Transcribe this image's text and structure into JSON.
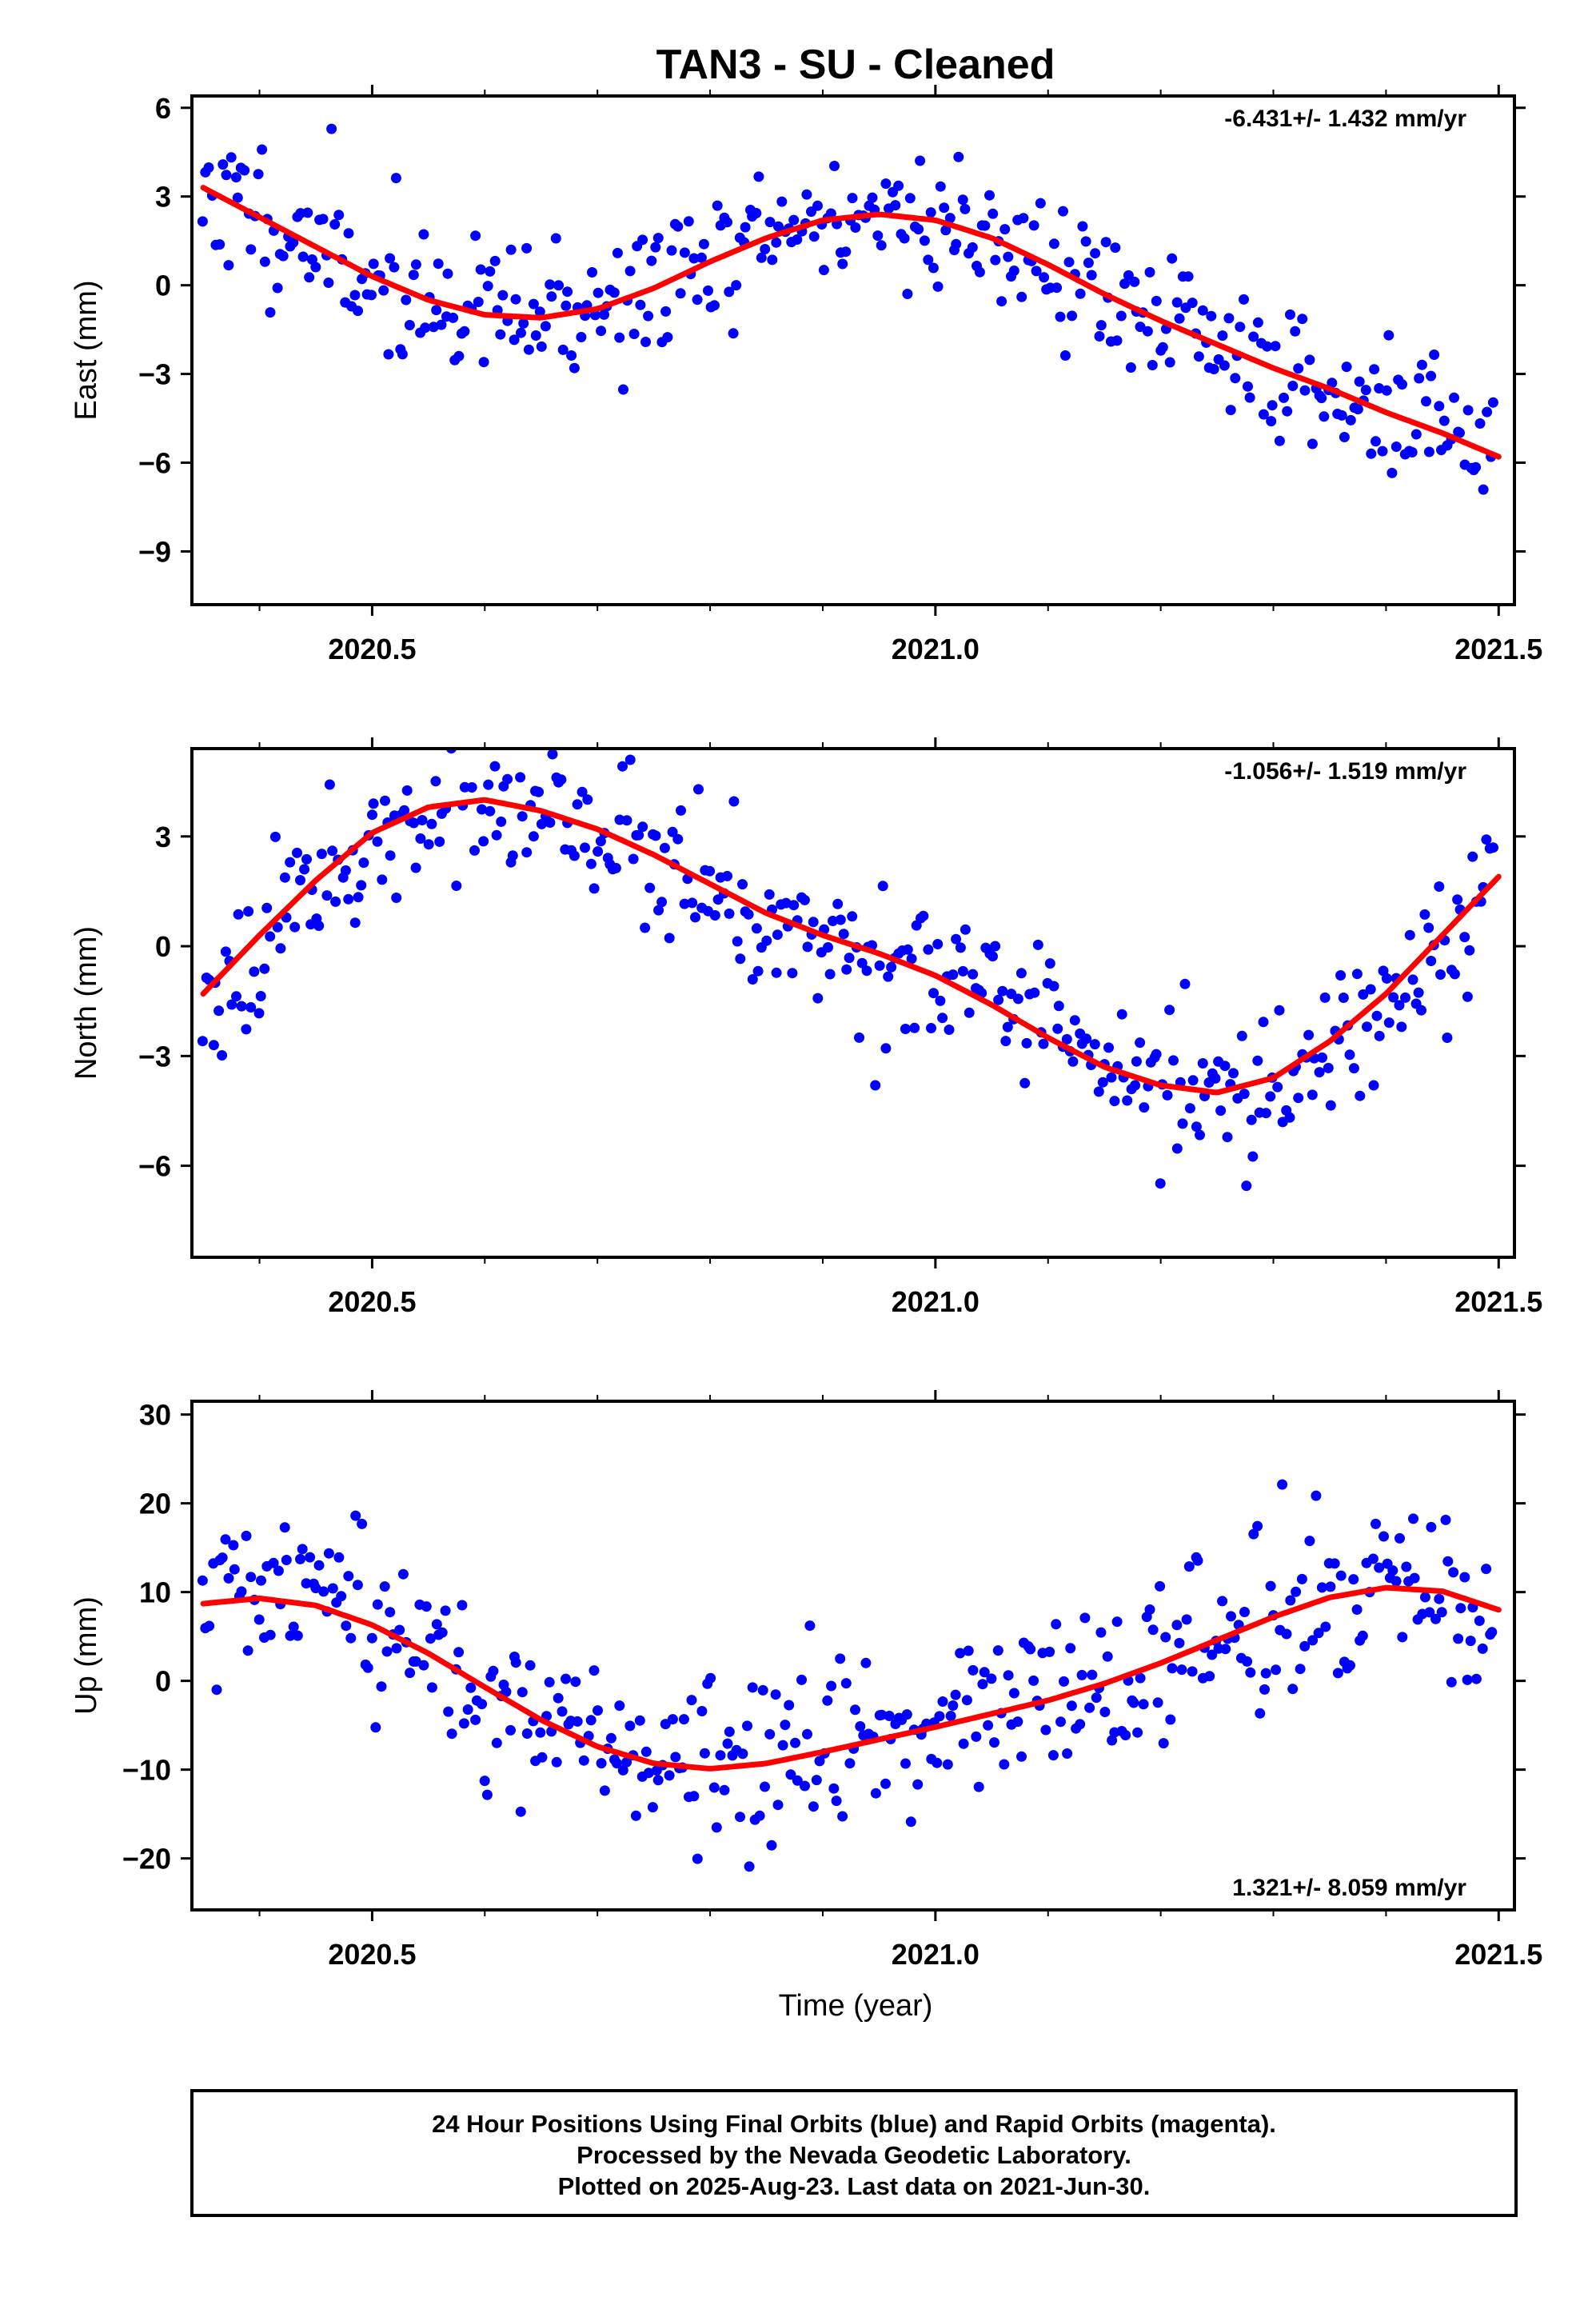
{
  "title": "TAN3  - SU - Cleaned",
  "xlabel": "Time (year)",
  "caption": {
    "line1": "24 Hour Positions Using Final Orbits (blue) and Rapid Orbits (magenta).",
    "line2": "Processed by the Nevada Geodetic Laboratory.",
    "line3": "Plotted on 2025-Aug-23. Last data on 2021-Jun-30."
  },
  "colors": {
    "points": "#0000ff",
    "fit": "#ff0000",
    "frame": "#000000"
  },
  "chart_data": [
    {
      "type": "scatter",
      "ylabel": "East (mm)",
      "rate_text": "-6.431+/- 1.432 mm/yr",
      "xlim": [
        2020.34,
        2021.514
      ],
      "ylim": [
        -10.8,
        6.4
      ],
      "xticks": [
        2020.5,
        2021.0,
        2021.5
      ],
      "xtick_labels": [
        "2020.5",
        "2021.0",
        "2021.5"
      ],
      "yticks": [
        6,
        3,
        0,
        -3,
        -6,
        -9
      ],
      "ytick_labels": [
        "6",
        "3",
        "0",
        "−3",
        "−6",
        "−9"
      ],
      "fit": {
        "x": [
          2020.35,
          2020.4,
          2020.45,
          2020.5,
          2020.55,
          2020.6,
          2020.65,
          2020.7,
          2020.75,
          2020.8,
          2020.85,
          2020.9,
          2020.95,
          2021.0,
          2021.05,
          2021.1,
          2021.15,
          2021.2,
          2021.25,
          2021.3,
          2021.35,
          2021.4,
          2021.45,
          2021.5
        ],
        "y": [
          3.3,
          2.3,
          1.3,
          0.3,
          -0.5,
          -1.0,
          -1.1,
          -0.8,
          -0.1,
          0.8,
          1.6,
          2.2,
          2.4,
          2.2,
          1.6,
          0.7,
          -0.3,
          -1.2,
          -2.0,
          -2.8,
          -3.5,
          -4.3,
          -5.0,
          -5.8
        ]
      },
      "noise_seed": 11,
      "noise_sigma": 1.2
    },
    {
      "type": "scatter",
      "ylabel": "North (mm)",
      "rate_text": "-1.056+/- 1.519 mm/yr",
      "xlim": [
        2020.34,
        2021.514
      ],
      "ylim": [
        -8.5,
        5.4
      ],
      "xticks": [
        2020.5,
        2021.0,
        2021.5
      ],
      "xtick_labels": [
        "2020.5",
        "2021.0",
        "2021.5"
      ],
      "yticks": [
        3,
        0,
        -3,
        -6
      ],
      "ytick_labels": [
        "3",
        "0",
        "−3",
        "−6"
      ],
      "fit": {
        "x": [
          2020.35,
          2020.4,
          2020.45,
          2020.5,
          2020.55,
          2020.6,
          2020.65,
          2020.7,
          2020.75,
          2020.8,
          2020.85,
          2020.9,
          2020.95,
          2021.0,
          2021.05,
          2021.1,
          2021.15,
          2021.2,
          2021.25,
          2021.3,
          2021.35,
          2021.4,
          2021.45,
          2021.5
        ],
        "y": [
          -1.3,
          0.3,
          1.8,
          3.1,
          3.8,
          4.0,
          3.7,
          3.2,
          2.5,
          1.7,
          0.9,
          0.3,
          -0.2,
          -0.8,
          -1.6,
          -2.5,
          -3.3,
          -3.8,
          -4.0,
          -3.6,
          -2.6,
          -1.3,
          0.3,
          1.9
        ]
      },
      "noise_seed": 23,
      "noise_sigma": 1.0
    },
    {
      "type": "scatter",
      "ylabel": "Up (mm)",
      "rate_text": "1.321+/- 8.059 mm/yr",
      "xlim": [
        2020.34,
        2021.514
      ],
      "ylim": [
        -25.8,
        31.5
      ],
      "xticks": [
        2020.5,
        2021.0,
        2021.5
      ],
      "xtick_labels": [
        "2020.5",
        "2021.0",
        "2021.5"
      ],
      "yticks": [
        30,
        20,
        10,
        0,
        -10,
        -20
      ],
      "ytick_labels": [
        "30",
        "20",
        "10",
        "0",
        "−10",
        "−20"
      ],
      "fit": {
        "x": [
          2020.35,
          2020.4,
          2020.45,
          2020.5,
          2020.55,
          2020.6,
          2020.65,
          2020.7,
          2020.75,
          2020.8,
          2020.85,
          2020.9,
          2020.95,
          2021.0,
          2021.05,
          2021.1,
          2021.15,
          2021.2,
          2021.25,
          2021.3,
          2021.35,
          2021.4,
          2021.45,
          2021.5
        ],
        "y": [
          8.7,
          9.3,
          8.5,
          6.3,
          3.1,
          -0.7,
          -4.4,
          -7.4,
          -9.3,
          -9.9,
          -9.3,
          -8.0,
          -6.6,
          -5.2,
          -3.7,
          -2.2,
          -0.3,
          2.0,
          4.6,
          7.2,
          9.4,
          10.5,
          10.1,
          8.0
        ]
      },
      "noise_seed": 37,
      "noise_sigma": 4.8
    }
  ]
}
